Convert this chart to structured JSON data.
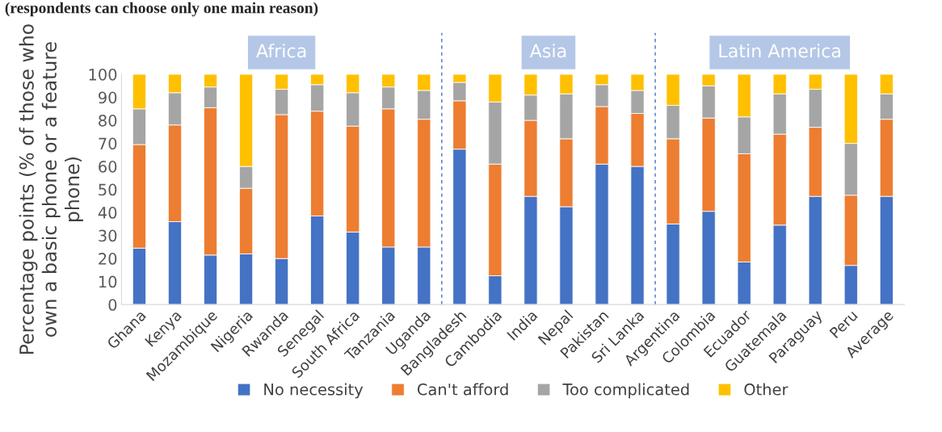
{
  "chart_data": {
    "type": "bar",
    "stacked": true,
    "title": "(respondents can choose only one main reason)",
    "ylabel": "Percentage points (% of those who\nown a basic phone or a feature\nphone)",
    "categories": [
      "Ghana",
      "Kenya",
      "Mozambique",
      "Nigeria",
      "Rwanda",
      "Senegal",
      "South Africa",
      "Tanzania",
      "Uganda",
      "Bangladesh",
      "Cambodia",
      "India",
      "Nepal",
      "Pakistan",
      "Sri Lanka",
      "Argentina",
      "Colombia",
      "Ecuador",
      "Guatemala",
      "Paraguay",
      "Peru",
      "Average"
    ],
    "series": [
      {
        "name": "No necessity",
        "color": "#4472c4",
        "values": [
          24.5,
          36,
          21.5,
          22,
          20,
          38.5,
          31.5,
          25,
          25,
          67.5,
          12.5,
          47,
          42.5,
          61,
          60,
          35,
          40.5,
          18.5,
          34.5,
          47,
          17,
          47
        ]
      },
      {
        "name": "Can't afford",
        "color": "#ed7d31",
        "values": [
          45,
          42,
          64,
          28.5,
          62.5,
          45.5,
          46,
          60,
          55.5,
          21,
          48.5,
          33,
          29.5,
          25,
          23,
          37,
          40.5,
          47,
          39.5,
          30,
          30.5,
          33.5
        ]
      },
      {
        "name": "Too complicated",
        "color": "#a5a5a5",
        "values": [
          15.5,
          14,
          9,
          9.5,
          11,
          11.5,
          14.5,
          9.5,
          12.5,
          8,
          27,
          11,
          19.5,
          9.5,
          10,
          14.5,
          14,
          16,
          17.5,
          16.5,
          22.5,
          11
        ]
      },
      {
        "name": "Other",
        "color": "#ffc000",
        "values": [
          15,
          8,
          5.5,
          40,
          6.5,
          4.5,
          8,
          5.5,
          7,
          3.5,
          12,
          9,
          8.5,
          4.5,
          7,
          13.5,
          5,
          18.5,
          8.5,
          6.5,
          30,
          8.5
        ]
      }
    ],
    "ylim": [
      0,
      100
    ],
    "yticks": [
      0,
      10,
      20,
      30,
      40,
      50,
      60,
      70,
      80,
      90,
      100
    ],
    "annotations": [
      "Africa",
      "Asia",
      "Latin America"
    ],
    "legend": "bottom",
    "grid": false
  }
}
